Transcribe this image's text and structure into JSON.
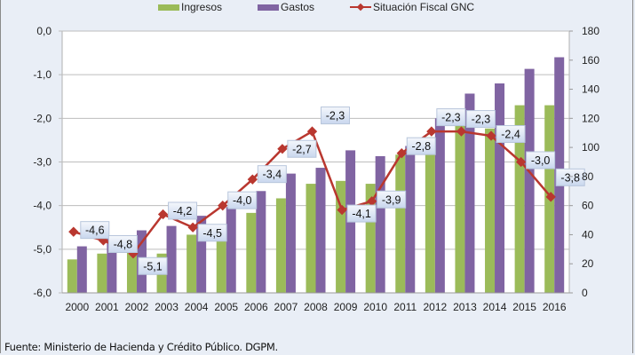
{
  "chart_data": {
    "type": "bar",
    "title": "",
    "xlabel": "",
    "ylabel_left": "",
    "ylabel_right": "",
    "categories": [
      "2000",
      "2001",
      "2002",
      "2003",
      "2004",
      "2005",
      "2006",
      "2007",
      "2008",
      "2009",
      "2010",
      "2011",
      "2012",
      "2013",
      "2014",
      "2015",
      "2016"
    ],
    "series": [
      {
        "name": "Ingresos",
        "type": "bar",
        "axis": "right",
        "color": "#9bbb59",
        "values": [
          23,
          27,
          29,
          27,
          40,
          40,
          55,
          65,
          75,
          77,
          75,
          95,
          107,
          115,
          113,
          129,
          129
        ]
      },
      {
        "name": "Gastos",
        "type": "bar",
        "axis": "right",
        "color": "#8064a2",
        "values": [
          32,
          38,
          43,
          46,
          53,
          59,
          70,
          82,
          86,
          98,
          94,
          101,
          120,
          137,
          144,
          154,
          162
        ]
      },
      {
        "name": "Situación Fiscal GNC",
        "type": "line",
        "axis": "left",
        "color": "#b9372f",
        "values": [
          -4.6,
          -4.8,
          -5.1,
          -4.2,
          -4.5,
          -4.0,
          -3.4,
          -2.7,
          -2.3,
          -4.1,
          -3.9,
          -2.8,
          -2.3,
          -2.3,
          -2.4,
          -3.0,
          -3.8
        ],
        "labels": [
          "-4,6",
          "-4,8",
          "-5,1",
          "-4,2",
          "-4,5",
          "-4,0",
          "-3,4",
          "-2,7",
          "-2,3",
          "-4,1",
          "-3,9",
          "-2,8",
          "-2,3",
          "-2,3",
          "-2,4",
          "-3,0",
          "-3,8"
        ]
      }
    ],
    "left_axis": {
      "ylim": [
        -6.0,
        0.0
      ],
      "ticks": [
        0.0,
        -1.0,
        -2.0,
        -3.0,
        -4.0,
        -5.0,
        -6.0
      ],
      "tick_labels": [
        "0,0",
        "-1,0",
        "-2,0",
        "-3,0",
        "-4,0",
        "-5,0",
        "-6,0"
      ]
    },
    "right_axis": {
      "ylim": [
        0,
        180
      ],
      "ticks": [
        180,
        160,
        140,
        120,
        100,
        80,
        60,
        40,
        20,
        0
      ],
      "tick_labels": [
        "180",
        "160",
        "140",
        "120",
        "100",
        "80",
        "60",
        "40",
        "20",
        "0"
      ]
    },
    "grid": true,
    "legend": {
      "position": "top",
      "entries": [
        "Ingresos",
        "Gastos",
        "Situación Fiscal GNC"
      ]
    }
  },
  "source_note": "Fuente: Ministerio de Hacienda y Crédito Público. DGPM."
}
